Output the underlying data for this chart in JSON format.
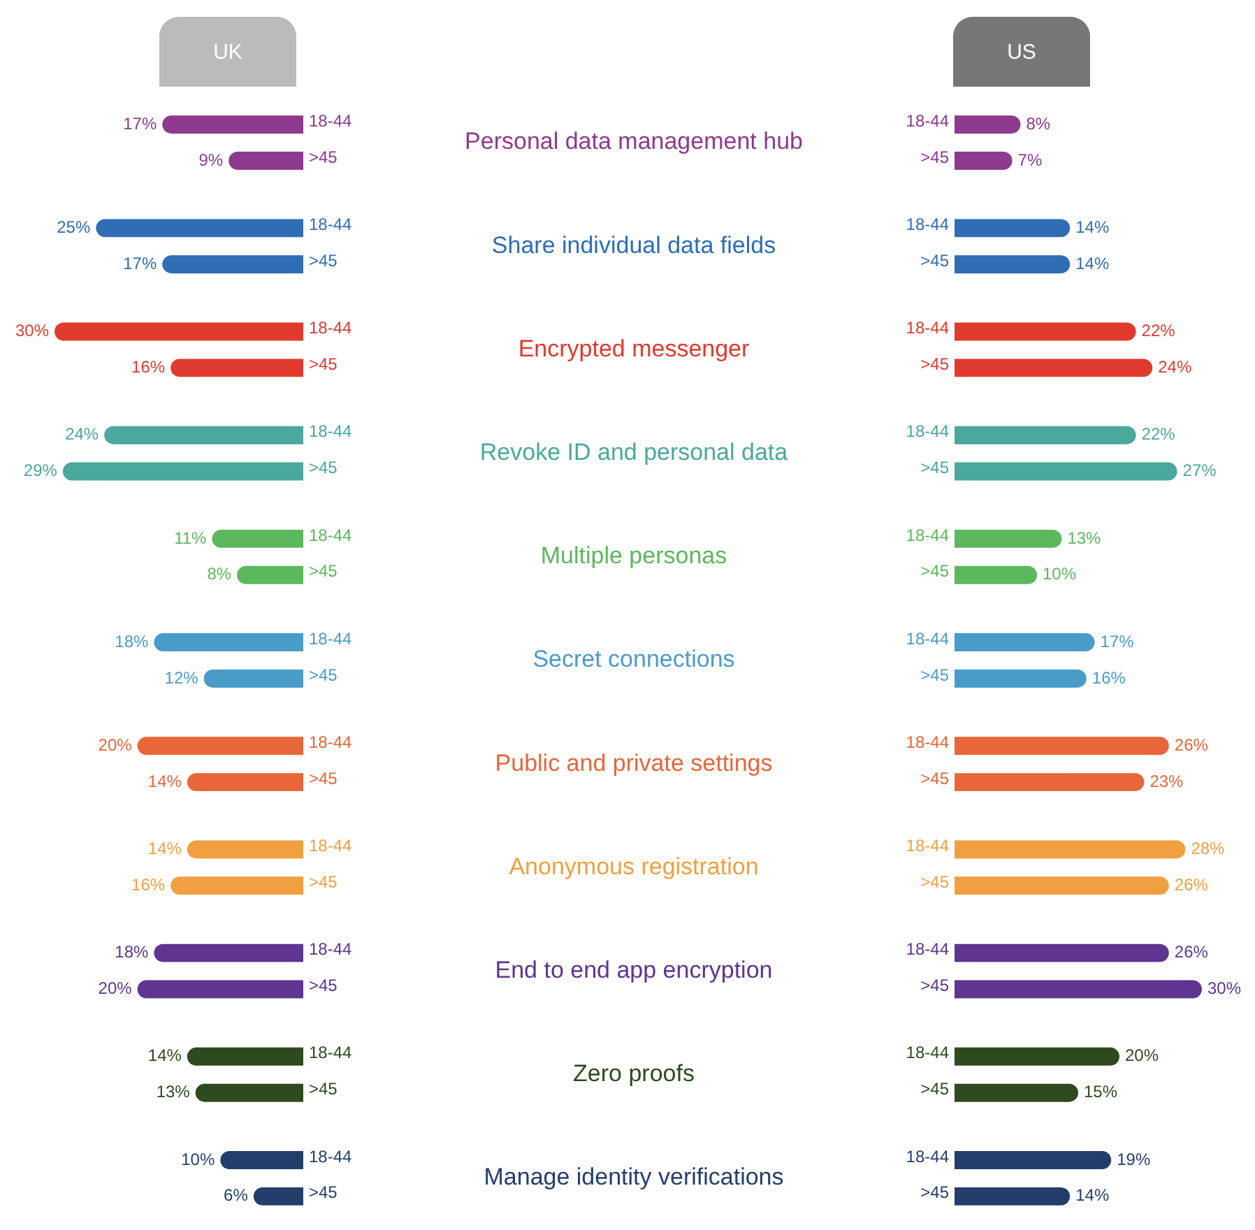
{
  "chart_data": [
    {
      "type": "bar",
      "title": "UK",
      "orientation": "horizontal",
      "tick_labels": "y",
      "categories": [
        "Personal data management hub",
        "Share individual data fields",
        "Encrypted messenger",
        "Revoke ID and personal data",
        "Multiple personas",
        "Secret connections",
        "Public and private settings",
        "Anonymous registration",
        "End to end app encryption",
        "Zero proofs",
        "Manage identity verifications"
      ],
      "series": [
        {
          "name": "18-44",
          "colors": [
            "#8e3a8e",
            "#2f6db5",
            "#e03a2f",
            "#4aa89c",
            "#5cb85c",
            "#4a9cc8",
            "#e8663a",
            "#f0a040",
            "#5e3591",
            "#2e4a1e",
            "#243e6b"
          ],
          "values": [
            17,
            25,
            30,
            24,
            11,
            18,
            20,
            14,
            18,
            14,
            10
          ],
          "value_labels": [
            "17%",
            "25%",
            "30%",
            "24%",
            "11%",
            "18%",
            "20%",
            "14%",
            "18%",
            "14%",
            "10%"
          ]
        },
        {
          "name": ">45",
          "colors": [
            "#8e3a8e",
            "#2f6db5",
            "#e03a2f",
            "#4aa89c",
            "#5cb85c",
            "#4a9cc8",
            "#e8663a",
            "#f0a040",
            "#5e3591",
            "#2e4a1e",
            "#243e6b"
          ],
          "values": [
            9,
            17,
            16,
            29,
            8,
            12,
            14,
            16,
            20,
            13,
            6
          ],
          "value_labels": [
            "9%",
            "17%",
            "16%",
            "29%",
            "8%",
            "12%",
            "14%",
            "16%",
            "20%",
            "13%",
            "6%"
          ]
        }
      ]
    },
    {
      "type": "bar",
      "title": "US",
      "orientation": "horizontal",
      "tick_labels": false,
      "series": [
        {
          "name": "18-44",
          "colors": [
            "#8e3a8e",
            "#2f6db5",
            "#e03a2f",
            "#4aa89c",
            "#5cb85c",
            "#4a9cc8",
            "#e8663a",
            "#f0a040",
            "#5e3591",
            "#2e4a1e",
            "#243e6b"
          ],
          "values": [
            8,
            14,
            22,
            22,
            13,
            17,
            26,
            28,
            26,
            20,
            19
          ],
          "value_labels": [
            "8%",
            "14%",
            "22%",
            "22%",
            "13%",
            "17%",
            "26%",
            "28%",
            "26%",
            "20%",
            "19%"
          ]
        },
        {
          "name": ">45",
          "colors": [
            "#8e3a8e",
            "#2f6db5",
            "#e03a2f",
            "#4aa89c",
            "#5cb85c",
            "#4a9cc8",
            "#e8663a",
            "#f0a040",
            "#5e3591",
            "#2e4a1e",
            "#243e6b"
          ],
          "values": [
            7,
            14,
            24,
            27,
            10,
            16,
            23,
            26,
            30,
            15,
            14
          ],
          "value_labels": [
            "7%",
            "14%",
            "24%",
            "27%",
            "10%",
            "16%",
            "23%",
            "26%",
            "30%",
            "15%",
            "14%"
          ]
        }
      ]
    }
  ]
}
